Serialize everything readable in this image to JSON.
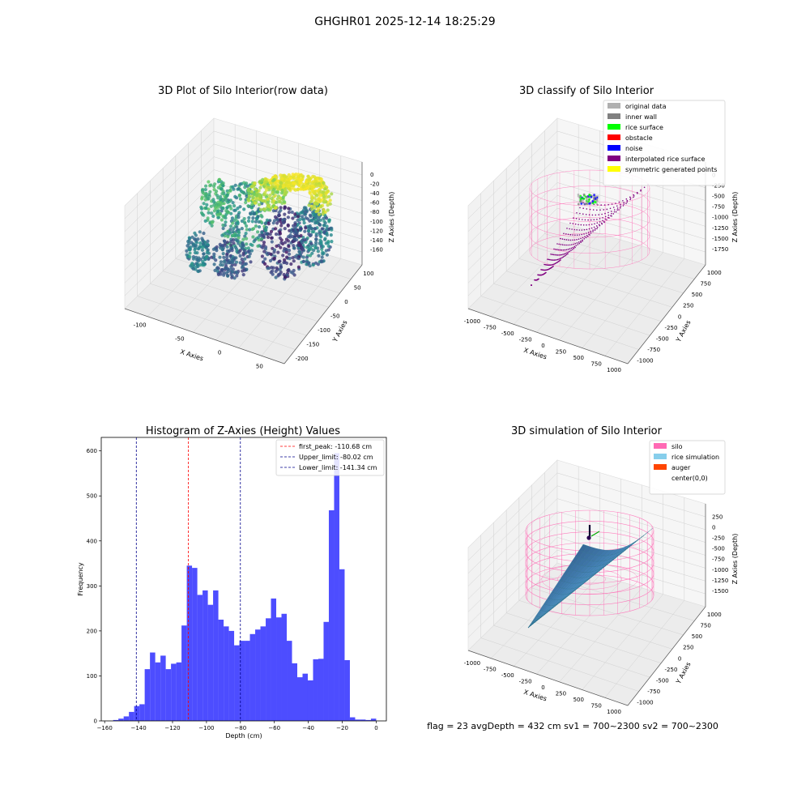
{
  "suptitle": "GHGHR01 2025-12-14 18:25:29",
  "footer": "flag = 23  avgDepth = 432 cm  sv1 = 700~2300  sv2 = 700~2300",
  "chart_data": [
    {
      "type": "scatter",
      "title": "3D Plot of Silo Interior(row data)",
      "xlabel": "X Axies",
      "ylabel": "Y Axies",
      "zlabel": "Z Axies (Depth)",
      "x_ticks": [
        "-100",
        "-50",
        "0",
        "50"
      ],
      "y_ticks": [
        "100",
        "50",
        "0",
        "-50",
        "-100",
        "-150",
        "-200"
      ],
      "z_ticks": [
        "0",
        "-20",
        "-40",
        "-60",
        "-80",
        "-100",
        "-120",
        "-140",
        "-160"
      ],
      "xlim": [
        -130,
        80
      ],
      "ylim": [
        -200,
        120
      ],
      "zlim": [
        -165,
        5
      ],
      "colormap": "viridis"
    },
    {
      "type": "scatter",
      "title": "3D classify of Silo Interior",
      "xlabel": "X Axies",
      "ylabel": "Y Axies",
      "zlabel": "Z Axies (Depth)",
      "x_ticks": [
        "-1000",
        "-750",
        "-500",
        "-250",
        "0",
        "250",
        "500",
        "750",
        "1000"
      ],
      "y_ticks": [
        "1000",
        "750",
        "500",
        "250",
        "0",
        "-250",
        "-500",
        "-750",
        "-1000"
      ],
      "z_ticks": [
        "0",
        "-250",
        "-500",
        "-750",
        "-1000",
        "-1250",
        "-1500",
        "-1750"
      ],
      "legend": [
        {
          "label": "original data",
          "color": "#b0b0b0"
        },
        {
          "label": "inner wall",
          "color": "#808080"
        },
        {
          "label": "rice surface",
          "color": "#00ff00"
        },
        {
          "label": "obstacle",
          "color": "#ff0000"
        },
        {
          "label": "noise",
          "color": "#0000ff"
        },
        {
          "label": "interpolated rice surface",
          "color": "#800080"
        },
        {
          "label": "symmetric generated points",
          "color": "#ffff00"
        }
      ],
      "legend_position": "top-right",
      "wall_color": "#ff69b4"
    },
    {
      "type": "bar",
      "title": "Histogram of Z-Axies (Height) Values",
      "xlabel": "Depth (cm)",
      "ylabel": "Frequency",
      "xlim": [
        -162,
        6
      ],
      "ylim": [
        0,
        630
      ],
      "x_ticks": [
        -160,
        -140,
        -120,
        -100,
        -80,
        -60,
        -40,
        -20,
        0
      ],
      "y_ticks": [
        0,
        100,
        200,
        300,
        400,
        500,
        600
      ],
      "bar_color": "#4d4dff",
      "bin_width": 3.1,
      "bin_start": -155.0,
      "values": [
        2,
        5,
        10,
        20,
        33,
        37,
        115,
        152,
        130,
        145,
        115,
        127,
        130,
        212,
        345,
        340,
        280,
        290,
        258,
        290,
        225,
        210,
        200,
        168,
        178,
        178,
        193,
        203,
        210,
        228,
        272,
        230,
        238,
        178,
        128,
        97,
        105,
        90,
        137,
        138,
        220,
        468,
        595,
        337,
        135,
        8,
        3,
        3,
        2,
        5
      ],
      "lines": [
        {
          "label": "first_peak: -110.68 cm",
          "x": -110.68,
          "color": "#ff0000"
        },
        {
          "label": "Upper_limit: -80.02 cm",
          "x": -80.02,
          "color": "#00008b"
        },
        {
          "label": "Lower_limit: -141.34 cm",
          "x": -141.34,
          "color": "#00008b"
        }
      ],
      "legend_position": "top-right"
    },
    {
      "type": "area",
      "title": "3D simulation of Silo Interior",
      "xlabel": "X Axies",
      "ylabel": "Y Axies",
      "zlabel": "Z Axies (Depth)",
      "x_ticks": [
        "-1000",
        "-750",
        "-500",
        "-250",
        "0",
        "250",
        "500",
        "750",
        "1000"
      ],
      "y_ticks": [
        "1000",
        "750",
        "500",
        "250",
        "0",
        "-250",
        "-500",
        "-750",
        "-1000"
      ],
      "z_ticks": [
        "250",
        "0",
        "-250",
        "-500",
        "-750",
        "-1000",
        "-1250",
        "-1500"
      ],
      "legend": [
        {
          "label": "silo",
          "color": "#ff69b4"
        },
        {
          "label": "rice simulation",
          "color": "#87ceeb"
        },
        {
          "label": "auger",
          "color": "#ff4500"
        },
        {
          "label": "center(0,0)",
          "color": "#ffffff"
        }
      ],
      "legend_position": "top-right"
    }
  ]
}
